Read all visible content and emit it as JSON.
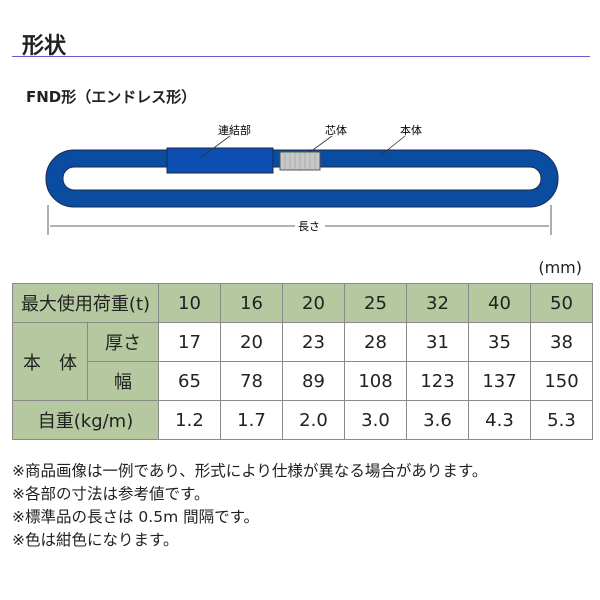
{
  "title": "形状",
  "subtitle": "FND形（エンドレス形）",
  "diagram": {
    "labels": {
      "connector": "連結部",
      "core": "芯体",
      "body": "本体",
      "length": "長さ"
    },
    "sling_color": "#0a4ca0"
  },
  "unit": "(mm)",
  "table": {
    "header_label": "最大使用荷重(t)",
    "loads": [
      "10",
      "16",
      "20",
      "25",
      "32",
      "40",
      "50"
    ],
    "group_label": "本　体",
    "thickness_label": "厚さ",
    "thickness": [
      "17",
      "20",
      "23",
      "28",
      "31",
      "35",
      "38"
    ],
    "width_label": "幅",
    "width": [
      "65",
      "78",
      "89",
      "108",
      "123",
      "137",
      "150"
    ],
    "weight_label": "自重(kg/m)",
    "weight": [
      "1.2",
      "1.7",
      "2.0",
      "3.0",
      "3.6",
      "4.3",
      "5.3"
    ]
  },
  "notes": [
    "※商品画像は一例であり、形式により仕様が異なる場合があります。",
    "※各部の寸法は参考値です。",
    "※標準品の長さは 0.5m 間隔です。",
    "※色は紺色になります。"
  ]
}
